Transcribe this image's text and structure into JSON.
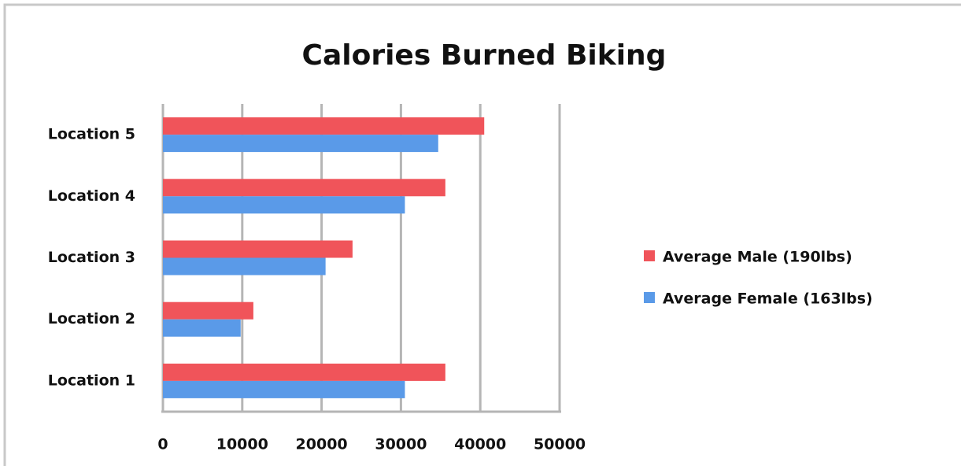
{
  "chart_data": {
    "type": "barh",
    "title": "Calories Burned Biking",
    "categories": [
      "Location 1",
      "Location 2",
      "Location 3",
      "Location 4",
      "Location 5"
    ],
    "series": [
      {
        "name": "Average Male (190lbs)",
        "color": "#f0545a",
        "values": [
          35600,
          11400,
          23900,
          35600,
          40500
        ]
      },
      {
        "name": "Average Female (163lbs)",
        "color": "#5a9ae8",
        "values": [
          30500,
          9800,
          20500,
          30500,
          34700
        ]
      }
    ],
    "xlim": [
      0,
      50000
    ],
    "xticks": [
      0,
      10000,
      20000,
      30000,
      40000,
      50000
    ],
    "grid": true,
    "legend": "right"
  }
}
